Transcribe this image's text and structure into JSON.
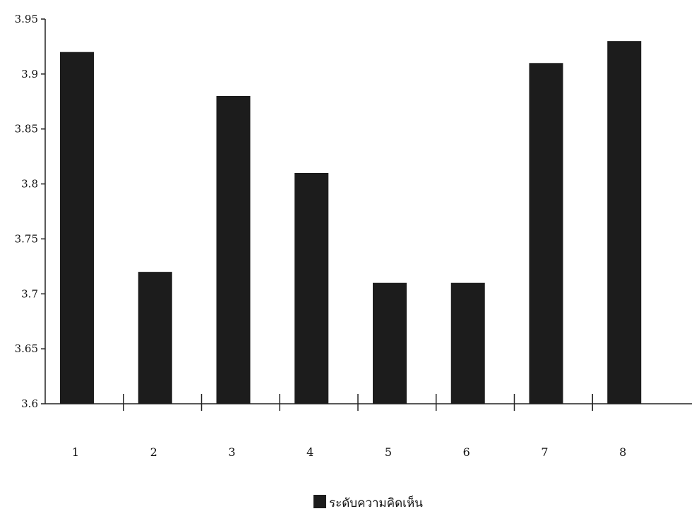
{
  "chart_data": {
    "type": "bar",
    "title": "",
    "xlabel": "",
    "ylabel": "",
    "categories": [
      "1",
      "2",
      "3",
      "4",
      "5",
      "6",
      "7",
      "8"
    ],
    "series": [
      {
        "name": "ระดับความคิดเห็น",
        "values": [
          3.92,
          3.72,
          3.88,
          3.81,
          3.71,
          3.71,
          3.91,
          3.93
        ]
      }
    ],
    "ylim": [
      3.6,
      3.95
    ],
    "yticks": [
      "3.6",
      "3.65",
      "3.7",
      "3.75",
      "3.8",
      "3.85",
      "3.9",
      "3.95"
    ],
    "grid": false,
    "legend_position": "bottom-center",
    "colors": {
      "bar": "#1c1c1c",
      "axis": "#222222",
      "background": "#ffffff"
    }
  }
}
